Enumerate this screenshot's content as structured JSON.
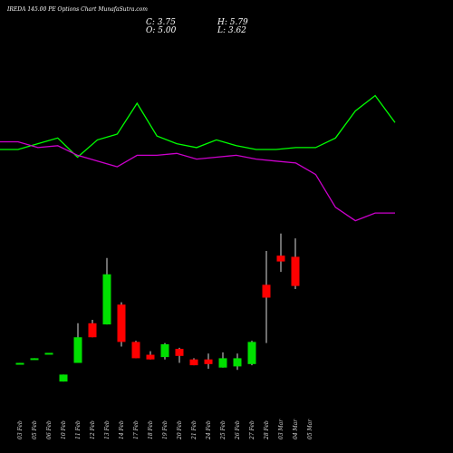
{
  "header": {
    "title": "IREDA 145.00 PE Options Chart MunafaSutra.com",
    "close": "C: 3.75",
    "open": "O: 5.00",
    "high": "H: 5.79",
    "low": "L: 3.62"
  },
  "colors": {
    "up": "#00e000",
    "down": "#ff0000",
    "line_green": "#00ff00",
    "line_magenta": "#cc00cc",
    "background": "#000000"
  },
  "chart_data": {
    "type": "candlestick",
    "categories": [
      "03 Feb",
      "05 Feb",
      "06 Feb",
      "10 Feb",
      "11 Feb",
      "12 Feb",
      "13 Feb",
      "14 Feb",
      "17 Feb",
      "18 Feb",
      "19 Feb",
      "20 Feb",
      "21 Feb",
      "24 Feb",
      "25 Feb",
      "26 Feb",
      "27 Feb",
      "28 Feb",
      "03 Mar",
      "04 Mar",
      "05 Mar"
    ],
    "candles": [
      {
        "label": "03 Feb",
        "open": 0.42,
        "close": 0.45,
        "high": 0.45,
        "low": 0.42,
        "dir": "up"
      },
      {
        "label": "05 Feb",
        "open": 0.62,
        "close": 0.65,
        "high": 0.65,
        "low": 0.62,
        "dir": "up"
      },
      {
        "label": "06 Feb",
        "open": 0.85,
        "close": 0.88,
        "high": 0.88,
        "low": 0.85,
        "dir": "up"
      },
      {
        "label": "10 Feb",
        "open": -0.35,
        "close": -0.05,
        "high": -0.05,
        "low": -0.35,
        "dir": "up"
      },
      {
        "label": "11 Feb",
        "open": 0.45,
        "close": 1.55,
        "high": 2.15,
        "low": 0.45,
        "dir": "up"
      },
      {
        "label": "12 Feb",
        "open": 2.15,
        "close": 1.55,
        "high": 2.3,
        "low": 1.55,
        "dir": "down"
      },
      {
        "label": "13 Feb",
        "open": 2.1,
        "close": 4.25,
        "high": 4.95,
        "low": 2.1,
        "dir": "up"
      },
      {
        "label": "14 Feb",
        "open": 2.95,
        "close": 1.35,
        "high": 3.05,
        "low": 1.15,
        "dir": "down"
      },
      {
        "label": "17 Feb",
        "open": 1.35,
        "close": 0.65,
        "high": 1.4,
        "low": 0.65,
        "dir": "down"
      },
      {
        "label": "18 Feb",
        "open": 0.8,
        "close": 0.6,
        "high": 0.95,
        "low": 0.6,
        "dir": "down"
      },
      {
        "label": "19 Feb",
        "open": 0.7,
        "close": 1.25,
        "high": 1.3,
        "low": 0.6,
        "dir": "up"
      },
      {
        "label": "20 Feb",
        "open": 1.05,
        "close": 0.75,
        "high": 1.1,
        "low": 0.45,
        "dir": "down"
      },
      {
        "label": "21 Feb",
        "open": 0.6,
        "close": 0.35,
        "high": 0.65,
        "low": 0.35,
        "dir": "down"
      },
      {
        "label": "24 Feb",
        "open": 0.6,
        "close": 0.4,
        "high": 0.85,
        "low": 0.2,
        "dir": "down"
      },
      {
        "label": "25 Feb",
        "open": 0.25,
        "close": 0.65,
        "high": 0.9,
        "low": 0.25,
        "dir": "up"
      },
      {
        "label": "26 Feb",
        "open": 0.3,
        "close": 0.65,
        "high": 0.85,
        "low": 0.15,
        "dir": "up"
      },
      {
        "label": "27 Feb",
        "open": 0.4,
        "close": 1.35,
        "high": 1.4,
        "low": 0.35,
        "dir": "up"
      },
      {
        "label": "28 Feb",
        "open": 3.8,
        "close": 3.25,
        "high": 5.25,
        "low": 1.3,
        "dir": "down"
      },
      {
        "label": "03 Mar",
        "open": 5.05,
        "close": 4.8,
        "high": 6.0,
        "low": 4.35,
        "dir": "down"
      },
      {
        "label": "04 Mar",
        "open": 5.0,
        "close": 3.75,
        "high": 5.79,
        "low": 3.62,
        "dir": "down"
      }
    ],
    "series": [
      {
        "values": [
          70.0,
          70.0,
          71.5,
          73.0,
          68.0,
          72.5,
          74.0,
          82.0,
          73.5,
          71.5,
          70.5,
          72.5,
          71.0,
          70.0,
          70.0,
          70.5,
          70.5,
          73.0,
          80.0,
          84.0,
          77.0
        ]
      },
      {
        "values": [
          72.0,
          72.0,
          70.5,
          71.0,
          68.5,
          67.0,
          65.5,
          68.5,
          68.5,
          69.0,
          67.5,
          68.0,
          68.5,
          67.5,
          67.0,
          66.5,
          63.5,
          55.0,
          51.5,
          53.5,
          53.5
        ]
      }
    ],
    "ylim_price": [
      -0.5,
      6.3
    ],
    "ylim_indicator": [
      50,
      90
    ]
  }
}
